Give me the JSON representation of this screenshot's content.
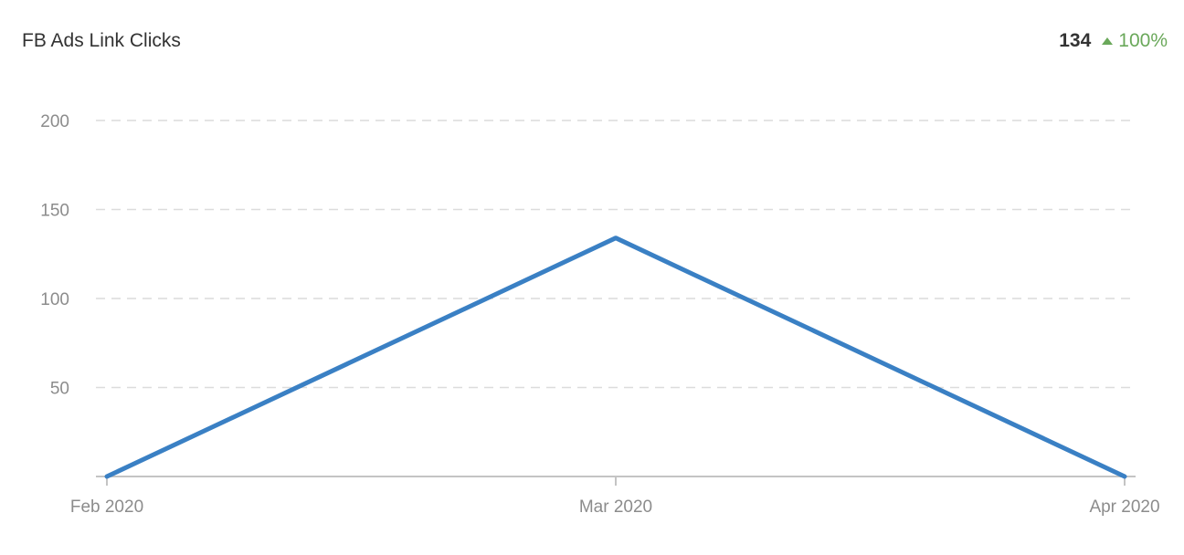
{
  "header": {
    "title": "FB Ads Link Clicks",
    "value": "134",
    "change": "100%",
    "change_direction": "up",
    "change_color": "#6aa85a"
  },
  "chart_data": {
    "type": "line",
    "categories": [
      "Feb 2020",
      "Mar 2020",
      "Apr 2020"
    ],
    "series": [
      {
        "values": [
          0,
          134,
          0
        ],
        "color": "#3a80c4"
      }
    ],
    "yticks": [
      50,
      100,
      150,
      200
    ],
    "ylim": [
      0,
      200
    ],
    "grid": true,
    "xlabel": "",
    "ylabel": "",
    "title": ""
  }
}
